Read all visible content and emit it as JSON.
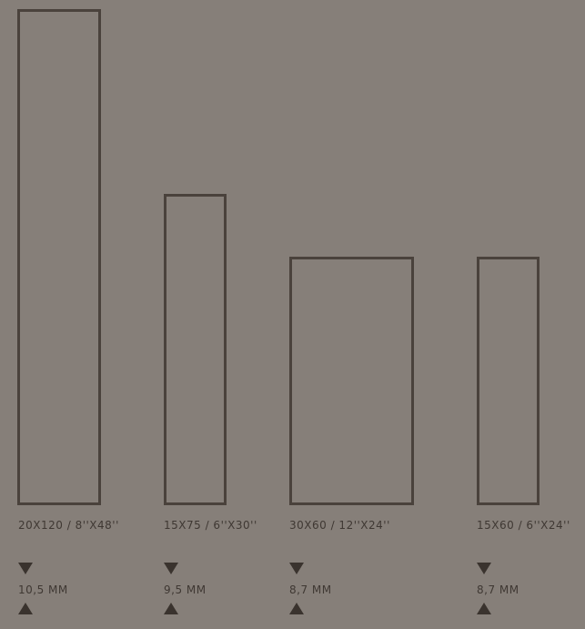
{
  "colors": {
    "background": "#867f79",
    "outline": "#4a423c",
    "text": "#3f3833",
    "arrow": "#3a332e"
  },
  "formats": [
    {
      "size_label": "20X120 / 8''X48''",
      "thickness_label": "10,5 MM"
    },
    {
      "size_label": "15X75 / 6''X30''",
      "thickness_label": "9,5 MM"
    },
    {
      "size_label": "30X60 / 12''X24''",
      "thickness_label": "8,7 MM"
    },
    {
      "size_label": "15X60 / 6''X24''",
      "thickness_label": "8,7 MM"
    }
  ]
}
